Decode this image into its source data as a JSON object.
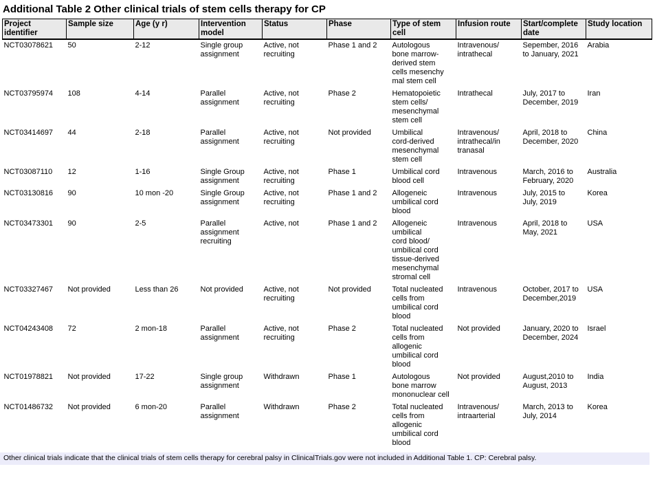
{
  "title": "Additional Table 2 Other clinical trials of stem cells therapy for CP",
  "table": {
    "columns": [
      {
        "id": "project-identifier",
        "label": "Project\nidentifier"
      },
      {
        "id": "sample-size",
        "label": "Sample size"
      },
      {
        "id": "age",
        "label": "Age (y r)"
      },
      {
        "id": "intervention-model",
        "label": "Intervention\nmodel"
      },
      {
        "id": "status",
        "label": "Status"
      },
      {
        "id": "phase",
        "label": "Phase"
      },
      {
        "id": "stem-cell-type",
        "label": "Type of stem\ncell"
      },
      {
        "id": "infusion-route",
        "label": "Infusion route"
      },
      {
        "id": "start-complete-date",
        "label": "Start/complete\ndate"
      },
      {
        "id": "study-location",
        "label": "Study location"
      }
    ],
    "rows": [
      [
        "NCT03078621",
        "50",
        "2-12",
        "Single group\nassignment",
        "Active, not\nrecruiting",
        "Phase 1 and 2",
        "Autologous\nbone marrow-\nderived stem\ncells mesenchy\nmal stem cell",
        "Intravenous/\nintrathecal",
        "Sepember, 2016\nto January, 2021",
        "Arabia"
      ],
      [
        "NCT03795974",
        "108",
        "4-14",
        "Parallel\nassignment",
        "Active, not\nrecruiting",
        "Phase 2",
        "Hematopoietic\nstem cells/\nmesenchymal\nstem cell",
        "Intrathecal",
        "July, 2017 to\nDecember, 2019",
        "Iran"
      ],
      [
        "NCT03414697",
        "44",
        "2-18",
        "Parallel\nassignment",
        "Active, not\nrecruiting",
        "Not provided",
        "Umbilical\ncord-derived\nmesenchymal\nstem cell",
        "Intravenous/\nintrathecal/in\ntranasal",
        "April, 2018 to\nDecember, 2020",
        "China"
      ],
      [
        "NCT03087110",
        "12",
        "1-16",
        "Single Group\nassignment",
        "Active, not\nrecruiting",
        "Phase 1",
        "Umbilical cord\nblood cell",
        "Intravenous",
        "March, 2016 to\nFebruary, 2020",
        "Australia"
      ],
      [
        "NCT03130816",
        "90",
        "10 mon -20",
        "Single Group\nassignment",
        "Active, not\nrecruiting",
        "Phase 1 and 2",
        "Allogeneic\numbilical cord\nblood",
        "Intravenous",
        "July, 2015 to\nJuly, 2019",
        "Korea"
      ],
      [
        "NCT03473301",
        "90",
        "2-5",
        "Parallel\nassignment\nrecruiting",
        "Active, not",
        "Phase 1 and 2",
        "Allogeneic\numbilical\ncord blood/\numbilical cord\ntissue-derived\nmesenchymal\nstromal cell",
        "Intravenous",
        "April, 2018 to\nMay, 2021",
        "USA"
      ],
      [
        "NCT03327467",
        "Not provided",
        "Less than 26",
        "Not provided",
        "Active, not\nrecruiting",
        "Not provided",
        "Total nucleated\ncells from\numbilical cord\nblood",
        "Intravenous",
        "October, 2017 to\nDecember,2019",
        "USA"
      ],
      [
        "NCT04243408",
        "72",
        "2 mon-18",
        "Parallel\nassignment",
        "Active, not\nrecruiting",
        "Phase 2",
        "Total nucleated\ncells from\nallogenic\numbilical cord\nblood",
        "Not provided",
        "January, 2020 to\nDecember, 2024",
        "Israel"
      ],
      [
        "NCT01978821",
        "Not provided",
        "17-22",
        "Single group\nassignment",
        "Withdrawn",
        "Phase 1",
        "Autologous\nbone marrow\nmononuclear cell",
        "Not provided",
        "August,2010 to\nAugust, 2013",
        "India"
      ],
      [
        "NCT01486732",
        "Not provided",
        "6 mon-20",
        "Parallel\nassignment",
        "Withdrawn",
        "Phase 2",
        "Total nucleated\ncells from\nallogenic\numbilical cord\nblood",
        "Intravenous/\nintraarterial",
        "March, 2013 to\nJuly, 2014",
        "Korea"
      ]
    ]
  },
  "footnote": "Other clinical trials indicate that the clinical trials of stem cells therapy for cerebral palsy in ClinicalTrials.gov were not included in Additional Table 1. CP: Cerebral palsy.",
  "colors": {
    "header_bg": "#e9e9e9",
    "footnote_bg": "#ececfa",
    "border": "#000000"
  }
}
